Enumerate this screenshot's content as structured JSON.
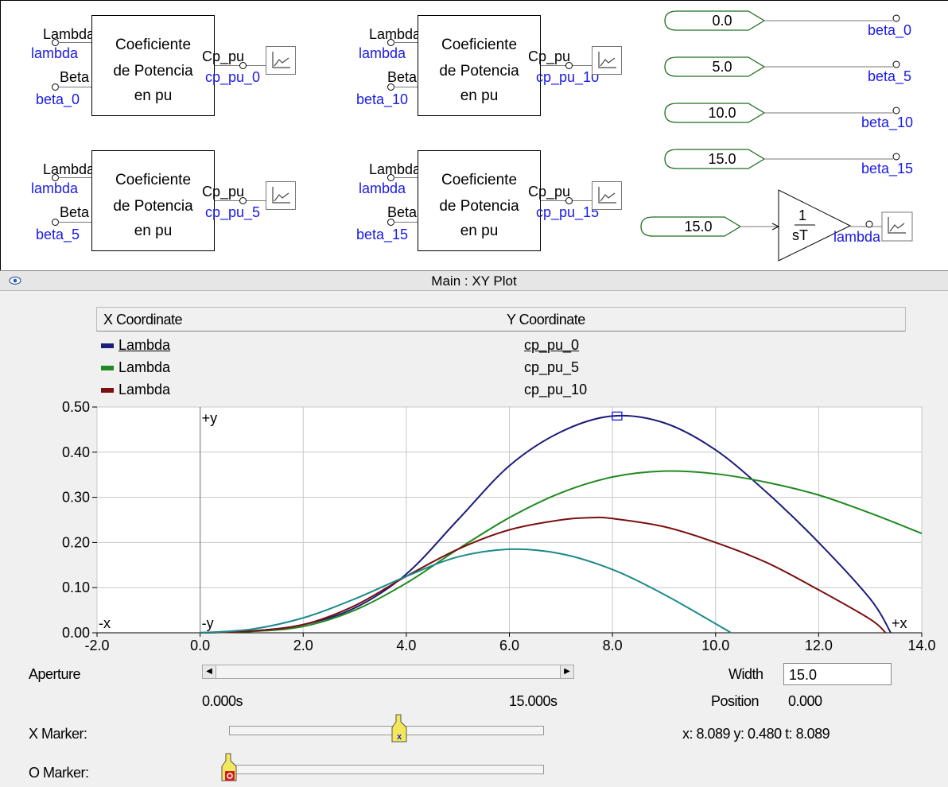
{
  "schematic": {
    "cp_blocks": [
      {
        "lambda_port": "Lambda",
        "lambda_signal": "lambda",
        "beta_port": "Beta",
        "beta_signal": "beta_0",
        "title_1": "Coeficiente",
        "title_2": "de Potencia",
        "title_3": "en pu",
        "out_port": "Cp_pu",
        "out_signal": "cp_pu_0"
      },
      {
        "lambda_port": "Lambda",
        "lambda_signal": "lambda",
        "beta_port": "Beta",
        "beta_signal": "beta_10",
        "title_1": "Coeficiente",
        "title_2": "de Potencia",
        "title_3": "en pu",
        "out_port": "Cp_pu",
        "out_signal": "cp_pu_10"
      },
      {
        "lambda_port": "Lambda",
        "lambda_signal": "lambda",
        "beta_port": "Beta",
        "beta_signal": "beta_5",
        "title_1": "Coeficiente",
        "title_2": "de Potencia",
        "title_3": "en pu",
        "out_port": "Cp_pu",
        "out_signal": "cp_pu_5"
      },
      {
        "lambda_port": "Lambda",
        "lambda_signal": "lambda",
        "beta_port": "Beta",
        "beta_signal": "beta_15",
        "title_1": "Coeficiente",
        "title_2": "de Potencia",
        "title_3": "en pu",
        "out_port": "Cp_pu",
        "out_signal": "cp_pu_15"
      }
    ],
    "constants": [
      {
        "value": "0.0",
        "signal": "beta_0"
      },
      {
        "value": "5.0",
        "signal": "beta_5"
      },
      {
        "value": "10.0",
        "signal": "beta_10"
      },
      {
        "value": "15.0",
        "signal": "beta_15"
      }
    ],
    "integrator": {
      "input_value": "15.0",
      "numerator": "1",
      "denominator": "sT",
      "out_signal": "lambda"
    }
  },
  "plot_panel": {
    "title": "Main : XY Plot",
    "legend_header": {
      "x": "X Coordinate",
      "y": "Y Coordinate"
    },
    "legend_rows": [
      {
        "x": "Lambda",
        "y": "cp_pu_0",
        "color": "#1c1c7a"
      },
      {
        "x": "Lambda",
        "y": "cp_pu_5",
        "color": "#1f8a1f"
      },
      {
        "x": "Lambda",
        "y": "cp_pu_10",
        "color": "#7a1010"
      }
    ],
    "quadrant_labels": {
      "py": "+y",
      "ny": "-y",
      "nx": "-x",
      "px": "+x"
    }
  },
  "chart_data": {
    "type": "line",
    "xlim": [
      -2.0,
      14.0
    ],
    "ylim": [
      0.0,
      0.5
    ],
    "x_ticks": [
      "-2.0",
      "0.0",
      "2.0",
      "4.0",
      "6.0",
      "8.0",
      "10.0",
      "12.0",
      "14.0"
    ],
    "y_ticks": [
      "0.00",
      "0.10",
      "0.20",
      "0.30",
      "0.40",
      "0.50"
    ],
    "grid": true,
    "series": [
      {
        "name": "cp_pu_0",
        "color": "#1c1c7a",
        "x": [
          0,
          1,
          2,
          3,
          4,
          5,
          6,
          7,
          8,
          9,
          10,
          11,
          12,
          13,
          13.4
        ],
        "y": [
          0,
          0.004,
          0.018,
          0.055,
          0.13,
          0.25,
          0.37,
          0.445,
          0.48,
          0.465,
          0.405,
          0.31,
          0.2,
          0.075,
          0.0
        ]
      },
      {
        "name": "cp_pu_5",
        "color": "#1f8a1f",
        "x": [
          0,
          1,
          2,
          3,
          4,
          5,
          6,
          7,
          8,
          9,
          10,
          11,
          12,
          13,
          14
        ],
        "y": [
          0,
          0.003,
          0.014,
          0.05,
          0.11,
          0.185,
          0.255,
          0.31,
          0.345,
          0.358,
          0.352,
          0.333,
          0.305,
          0.265,
          0.22
        ]
      },
      {
        "name": "cp_pu_10",
        "color": "#7a1010",
        "x": [
          0,
          1,
          2,
          3,
          4,
          5,
          6,
          7,
          7.6,
          8,
          9,
          10,
          11,
          12,
          13,
          13.3
        ],
        "y": [
          0,
          0.004,
          0.018,
          0.06,
          0.125,
          0.185,
          0.228,
          0.25,
          0.255,
          0.253,
          0.235,
          0.2,
          0.155,
          0.095,
          0.03,
          0.0
        ]
      },
      {
        "name": "cp_pu_15",
        "color": "#1a8a8a",
        "x": [
          0,
          1,
          2,
          3,
          4,
          5,
          6,
          7,
          8,
          9,
          10,
          10.3
        ],
        "y": [
          0,
          0.008,
          0.033,
          0.075,
          0.125,
          0.168,
          0.185,
          0.175,
          0.14,
          0.085,
          0.02,
          0.0
        ]
      }
    ],
    "marker": {
      "x": 8.089,
      "y": 0.48
    }
  },
  "controls": {
    "aperture_label": "Aperture",
    "time_start": "0.000s",
    "time_end": "15.000s",
    "width_label": "Width",
    "width_value": "15.0",
    "position_label": "Position",
    "position_value": "0.000",
    "x_marker_label": "X Marker:",
    "o_marker_label": "O Marker:",
    "readout": "x: 8.089  y: 0.480  t: 8.089",
    "x_marker_value": 8.089,
    "o_marker_value": 0.0
  }
}
